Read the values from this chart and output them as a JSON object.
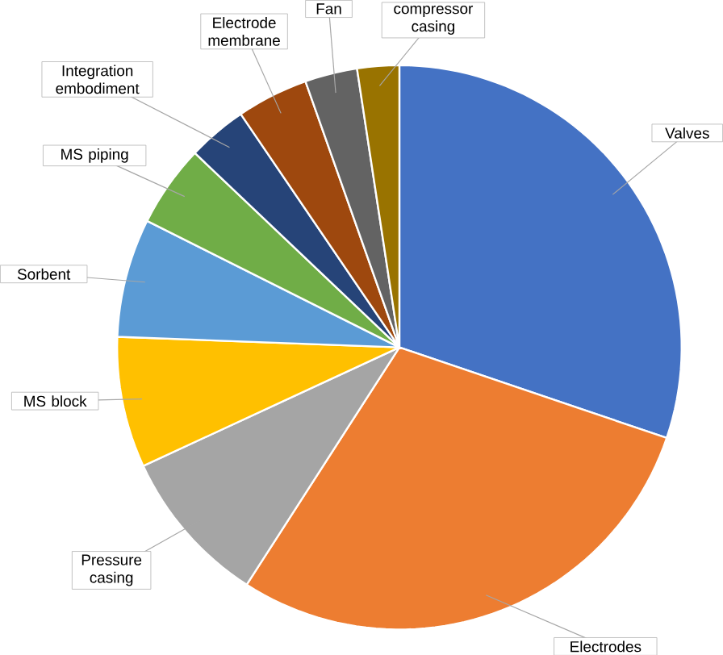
{
  "chart_data": {
    "type": "pie",
    "categories": [
      "Valves",
      "Electrodes",
      "Pressure casing",
      "MS block",
      "Sorbent",
      "MS piping",
      "Integration embodiment",
      "Electrode membrane",
      "Fan",
      "compressor casing"
    ],
    "values": [
      30.2,
      28.9,
      9.0,
      7.5,
      6.8,
      4.7,
      3.4,
      4.1,
      3.0,
      2.4
    ],
    "colors": [
      "#4472c4",
      "#ed7d31",
      "#a5a5a5",
      "#ffc000",
      "#5b9bd5",
      "#70ad47",
      "#264478",
      "#9e480e",
      "#636363",
      "#997300"
    ]
  }
}
